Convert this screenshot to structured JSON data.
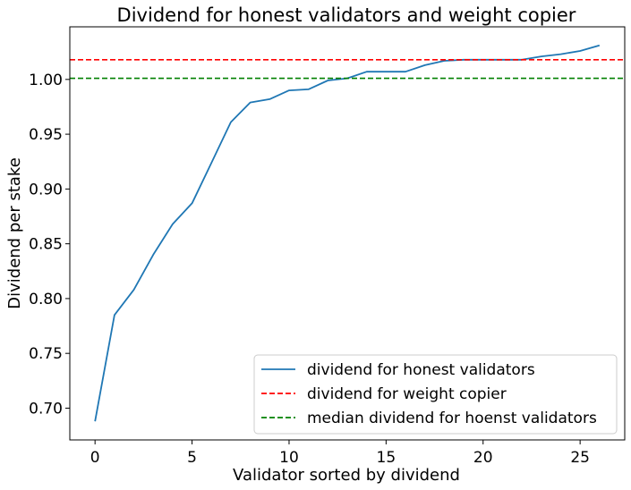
{
  "chart_data": {
    "type": "line",
    "title": "Dividend for honest validators and weight copier",
    "xlabel": "Validator sorted by dividend",
    "ylabel": "Dividend per stake",
    "xlim": [
      -1.3,
      27.3
    ],
    "ylim": [
      0.671,
      1.048
    ],
    "xticks": [
      0,
      5,
      10,
      15,
      20,
      25
    ],
    "xtick_labels": [
      "0",
      "5",
      "10",
      "15",
      "20",
      "25"
    ],
    "yticks": [
      0.7,
      0.75,
      0.8,
      0.85,
      0.9,
      0.95,
      1.0
    ],
    "ytick_labels": [
      "0.70",
      "0.75",
      "0.80",
      "0.85",
      "0.90",
      "0.95",
      "1.00"
    ],
    "grid": false,
    "legend_position": "lower-right",
    "series": [
      {
        "name": "dividend for honest validators",
        "style": "solid",
        "color": "#1f77b4",
        "x": [
          0,
          1,
          2,
          3,
          4,
          5,
          6,
          7,
          8,
          9,
          10,
          11,
          12,
          13,
          14,
          15,
          16,
          17,
          18,
          19,
          20,
          21,
          22,
          23,
          24,
          25,
          26
        ],
        "values": [
          0.688,
          0.785,
          0.808,
          0.84,
          0.868,
          0.887,
          0.924,
          0.961,
          0.979,
          0.982,
          0.99,
          0.991,
          0.999,
          1.001,
          1.007,
          1.007,
          1.007,
          1.013,
          1.017,
          1.018,
          1.018,
          1.018,
          1.018,
          1.021,
          1.023,
          1.026,
          1.031
        ]
      },
      {
        "name": "dividend for weight copier",
        "style": "dashed",
        "color": "#ff0000",
        "hline": 1.018
      },
      {
        "name": "median dividend for hoenst validators",
        "style": "dashed",
        "color": "#008000",
        "hline": 1.001
      }
    ]
  }
}
